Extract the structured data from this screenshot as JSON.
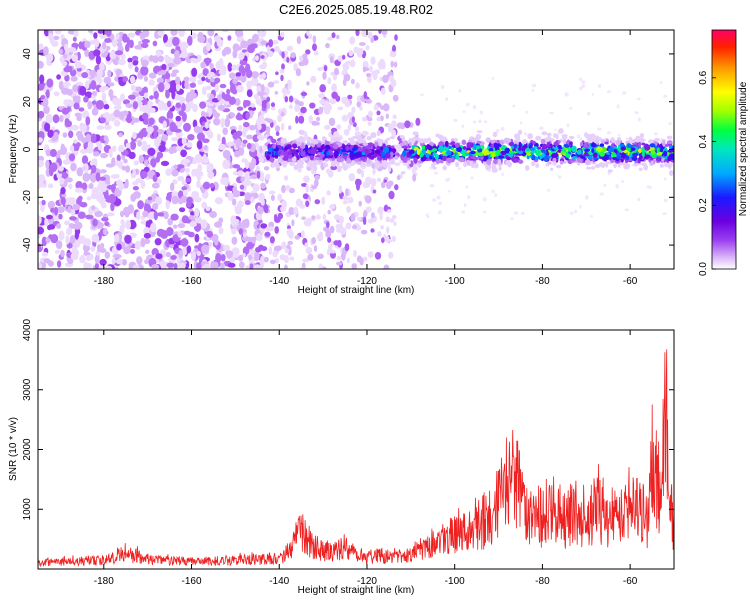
{
  "title": "C2E6.2025.085.19.48.R02",
  "colors": {
    "blob_light": "#e4c9fa",
    "blob_mid": "#c49af3",
    "blob_dark": "#8f43e6",
    "blob_deep": "#7a1fe0",
    "snr_line": "#ee2020"
  },
  "chart_data": [
    {
      "type": "heatmap",
      "xlabel": "Height of straight line (km)",
      "ylabel": "Frequency (Hz)",
      "xlim": [
        -195,
        -50
      ],
      "ylim": [
        -50,
        50
      ],
      "xticks": [
        -180,
        -160,
        -140,
        -120,
        -100,
        -80,
        -60
      ],
      "yticks": [
        -40,
        -20,
        0,
        20,
        40
      ],
      "colorbar": {
        "label": "Normalized spectral amplitude",
        "range": [
          0.0,
          0.75
        ],
        "ticks": [
          "0.0",
          "0.2",
          "0.4",
          "0.6"
        ],
        "colormap": [
          "#ffffff",
          "#d8b4f8",
          "#9b40f0",
          "#6a00e0",
          "#1a1aff",
          "#00aaff",
          "#00e6c0",
          "#00ff40",
          "#a0ff00",
          "#ffff00",
          "#ff9900",
          "#ff2000",
          "#ff0066"
        ]
      },
      "regions": [
        {
          "x_from": -195,
          "x_to": -145,
          "description": "broadband scatter",
          "freq_band": [
            -50,
            50
          ],
          "peak_amplitude": 0.12
        },
        {
          "x_from": -145,
          "x_to": -110,
          "description": "scatter with emerging band",
          "freq_band": [
            -50,
            50
          ],
          "peak_amplitude": 0.25
        },
        {
          "x_from": -110,
          "x_to": -50,
          "description": "narrow band near 0 Hz",
          "freq_band": [
            -10,
            8
          ],
          "peak_amplitude": 0.6
        }
      ]
    },
    {
      "type": "line",
      "xlabel": "Height of straight line (km)",
      "ylabel": "SNR (10 * v/v)",
      "xlim": [
        -195,
        -50
      ],
      "ylim": [
        0,
        4000
      ],
      "xticks": [
        -180,
        -160,
        -140,
        -120,
        -100,
        -80,
        -60
      ],
      "yticks": [
        1000,
        2000,
        3000,
        4000
      ],
      "series": [
        {
          "x": [
            -195,
            -190,
            -185,
            -180,
            -175,
            -170,
            -165,
            -160,
            -155,
            -150,
            -145,
            -140,
            -137,
            -135,
            -133,
            -130,
            -127,
            -125,
            -122,
            -120,
            -117,
            -115,
            -112,
            -110,
            -107,
            -105,
            -102,
            -100,
            -97,
            -95,
            -92,
            -90,
            -88,
            -87,
            -86,
            -85,
            -83,
            -80,
            -78,
            -75,
            -73,
            -70,
            -68,
            -65,
            -63,
            -60,
            -58,
            -56,
            -55,
            -53,
            -52,
            -51,
            -50
          ],
          "values": [
            180,
            200,
            210,
            230,
            450,
            260,
            220,
            200,
            210,
            240,
            260,
            280,
            600,
            1050,
            700,
            500,
            450,
            650,
            380,
            320,
            380,
            300,
            350,
            400,
            650,
            700,
            850,
            900,
            1000,
            1150,
            1400,
            1700,
            2400,
            2800,
            2300,
            1900,
            1600,
            1400,
            1700,
            1300,
            1500,
            1400,
            1600,
            1350,
            1500,
            1800,
            1600,
            1300,
            2900,
            1700,
            4000,
            2200,
            1000
          ]
        }
      ]
    }
  ]
}
